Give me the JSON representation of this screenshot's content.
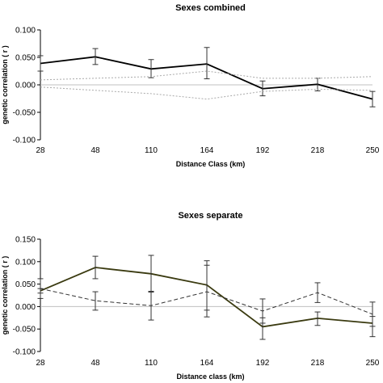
{
  "chart_data": [
    {
      "type": "line",
      "title": "Sexes combined",
      "xlabel": "Distance Class (km)",
      "ylabel": "genetic correlation ( r )",
      "categories": [
        "28",
        "48",
        "110",
        "164",
        "192",
        "218",
        "250"
      ],
      "ylim": [
        -0.1,
        0.1
      ],
      "yticks": [
        "0.100",
        "0.050",
        "0.000",
        "-0.050",
        "-0.100"
      ],
      "grid": false,
      "series": [
        {
          "style": "solid",
          "color": "#000000",
          "values": [
            0.039,
            0.051,
            0.029,
            0.038,
            -0.007,
            0.001,
            -0.026
          ],
          "error_upper": [
            0.053,
            0.066,
            0.046,
            0.068,
            0.007,
            0.012,
            -0.012
          ],
          "error_lower": [
            0.025,
            0.037,
            0.013,
            0.011,
            -0.02,
            -0.011,
            -0.04
          ]
        },
        {
          "style": "dotted",
          "color": "#aaaaaa",
          "values": [
            0.009,
            0.012,
            0.015,
            0.025,
            0.012,
            0.012,
            0.015
          ]
        },
        {
          "style": "dotted",
          "color": "#aaaaaa",
          "values": [
            -0.004,
            -0.01,
            -0.016,
            -0.026,
            -0.012,
            -0.008,
            -0.01
          ]
        }
      ]
    },
    {
      "type": "line",
      "title": "Sexes separate",
      "xlabel": "Distance class (km)",
      "ylabel": "genetic correlation ( r )",
      "categories": [
        "28",
        "48",
        "110",
        "164",
        "192",
        "218",
        "250"
      ],
      "ylim": [
        -0.1,
        0.15
      ],
      "yticks": [
        "0.150",
        "0.100",
        "0.050",
        "0.000",
        "-0.050",
        "-0.100"
      ],
      "grid": false,
      "series": [
        {
          "style": "solid",
          "color": "#3a3a10",
          "values": [
            0.035,
            0.087,
            0.073,
            0.048,
            -0.045,
            -0.026,
            -0.037
          ],
          "error_upper": [
            0.04,
            0.112,
            0.114,
            0.102,
            -0.025,
            -0.012,
            -0.022
          ],
          "error_lower": [
            0.03,
            0.062,
            0.032,
            -0.008,
            -0.073,
            -0.042,
            -0.067
          ]
        },
        {
          "style": "dashed",
          "color": "#333333",
          "values": [
            0.04,
            0.013,
            0.002,
            0.033,
            -0.01,
            0.031,
            -0.017
          ],
          "error_upper": [
            0.062,
            0.033,
            0.034,
            0.092,
            0.017,
            0.053,
            0.01
          ],
          "error_lower": [
            0.018,
            -0.008,
            -0.03,
            -0.023,
            -0.037,
            0.009,
            -0.044
          ]
        }
      ]
    }
  ]
}
